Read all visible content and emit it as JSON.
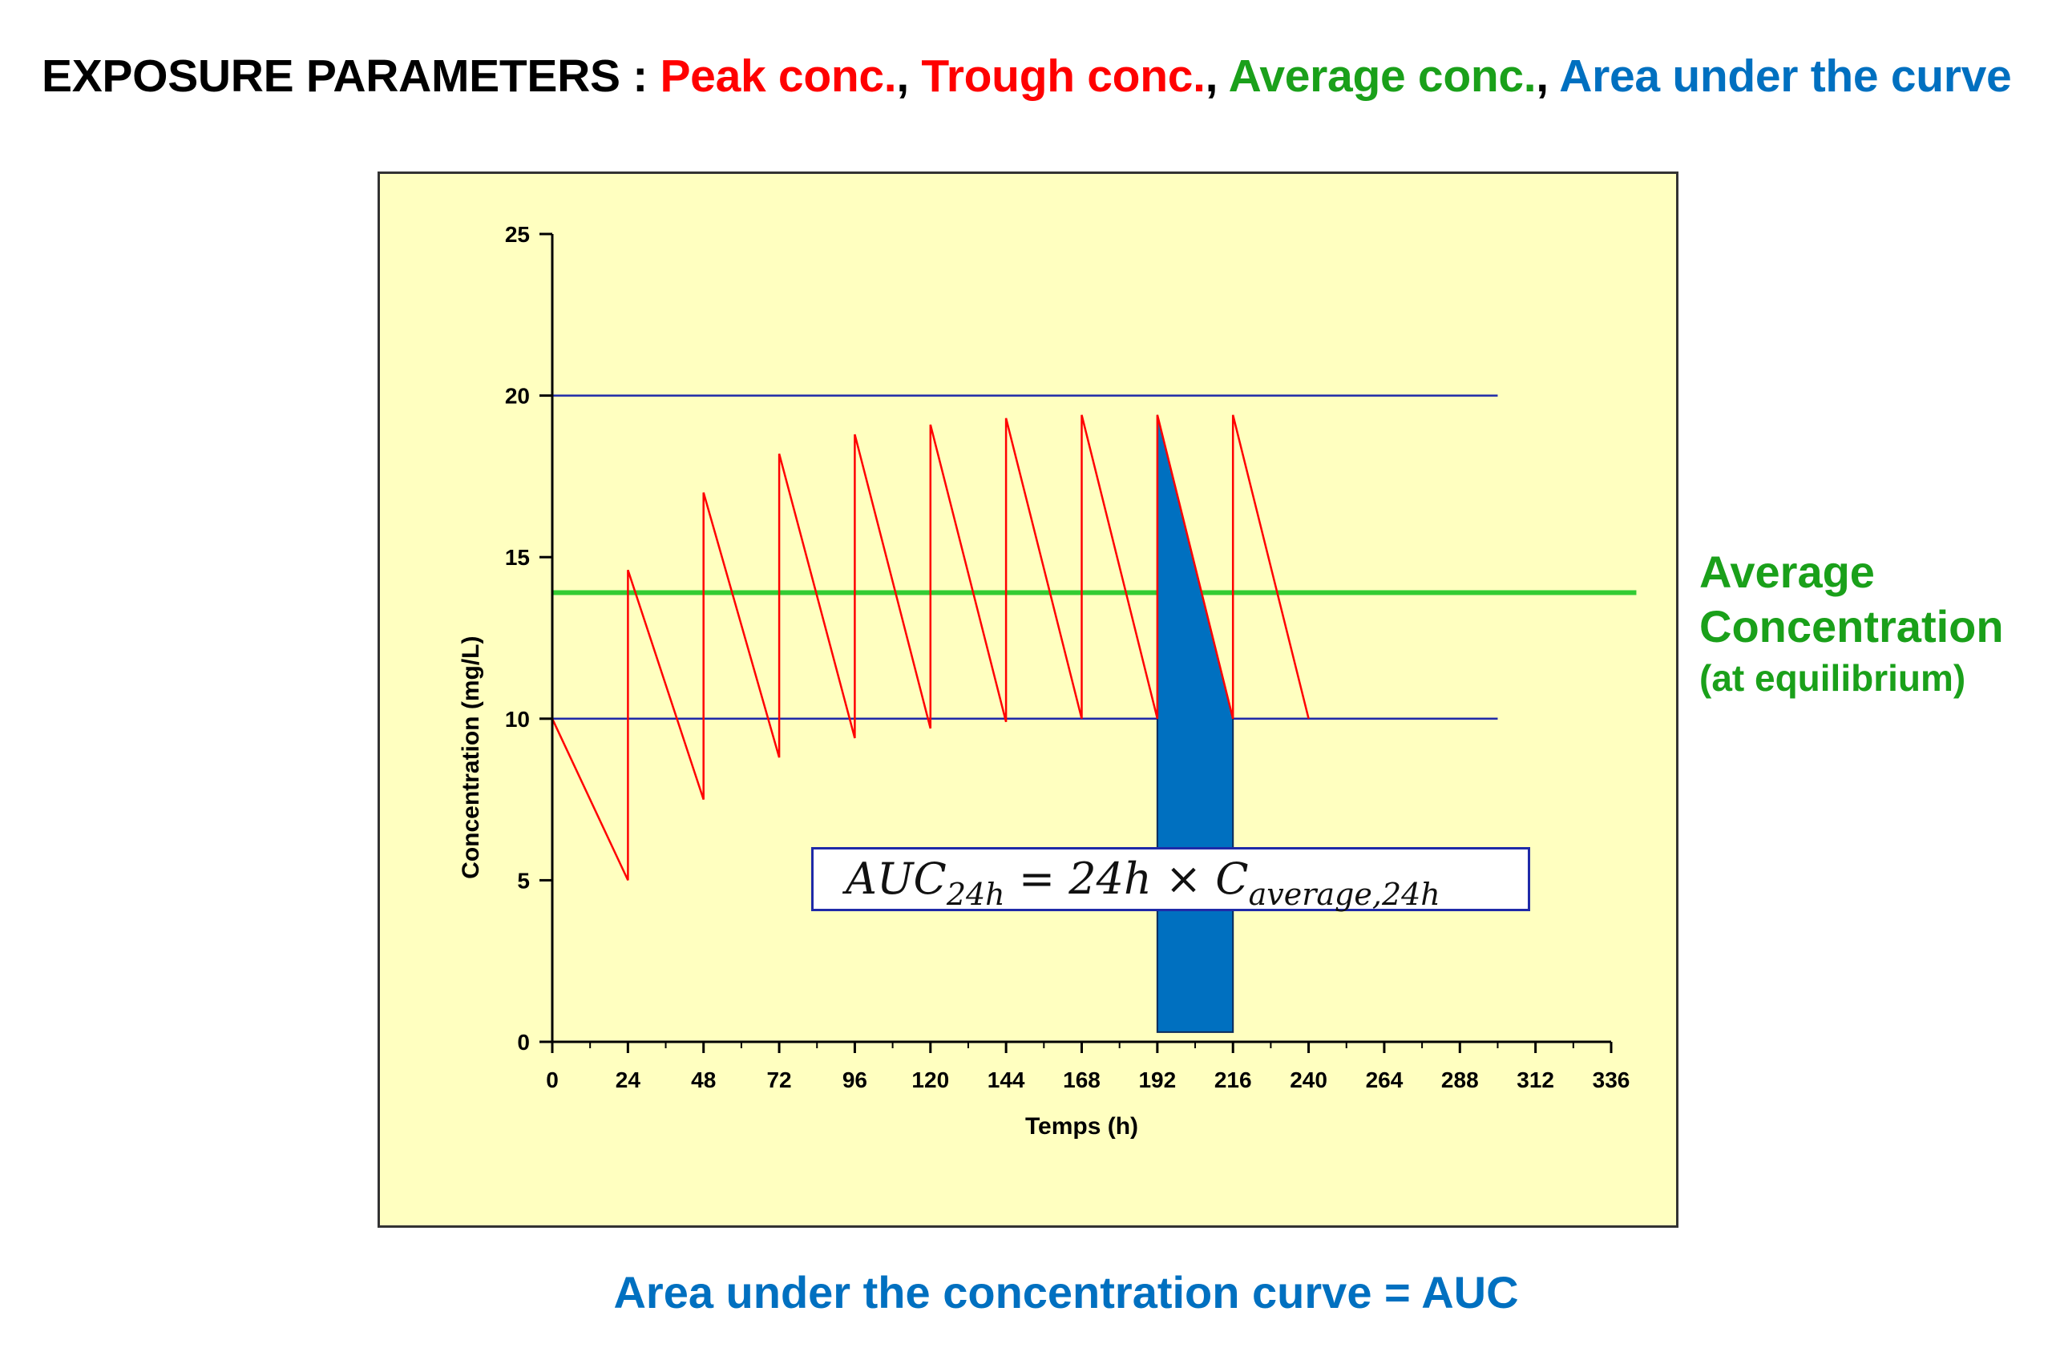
{
  "header": {
    "prefix": "EXPOSURE PARAMETERS :",
    "peak": "Peak conc.",
    "sep1": ",",
    "trough": "Trough conc.",
    "sep2": ",",
    "average": "Average conc.",
    "sep3": ",",
    "auc": "Area under the curve"
  },
  "side_label": {
    "line1": "Average",
    "line2": "Concentration",
    "line3": "(at equilibrium)"
  },
  "formula": {
    "lhs": "AUC",
    "lhs_sub": "24h",
    "mid": "= 24h × C",
    "rhs_sub": "average,24h"
  },
  "footer": "Area under the concentration curve = AUC",
  "colors": {
    "curve": "#ff0000",
    "average_line": "#33cc33",
    "ref_lines": "#1f2aa8",
    "auc_fill": "#0070c0",
    "plot_background": "#ffffc0"
  },
  "chart_data": {
    "type": "line",
    "xlabel": "Temps (h)",
    "ylabel": "Concentration (mg/L)",
    "xlim": [
      0,
      336
    ],
    "ylim": [
      0,
      25
    ],
    "x_ticks": [
      0,
      24,
      48,
      72,
      96,
      120,
      144,
      168,
      192,
      216,
      240,
      264,
      288,
      312,
      336
    ],
    "y_ticks": [
      0,
      5,
      10,
      15,
      20,
      25
    ],
    "series": [
      {
        "type": "line",
        "x": [
          0,
          24,
          24,
          48,
          48,
          72,
          72,
          96,
          96,
          120,
          120,
          144,
          144,
          168,
          168,
          192,
          192,
          216,
          216,
          240
        ],
        "y": [
          10,
          5,
          14.6,
          7.5,
          17.0,
          8.8,
          18.2,
          9.4,
          18.8,
          9.7,
          19.1,
          9.9,
          19.3,
          10.0,
          19.4,
          10.0,
          19.4,
          10.0,
          19.4,
          10.0
        ]
      }
    ],
    "reference_lines": [
      {
        "y": 20,
        "x": [
          0,
          300
        ]
      },
      {
        "y": 10,
        "x": [
          0,
          300
        ]
      },
      {
        "y": 13.9,
        "x": [
          0,
          344
        ]
      }
    ],
    "shaded_area": {
      "x": [
        192,
        216
      ],
      "y_top": [
        19.4,
        10.0
      ],
      "y_bottom": 0.3
    }
  }
}
